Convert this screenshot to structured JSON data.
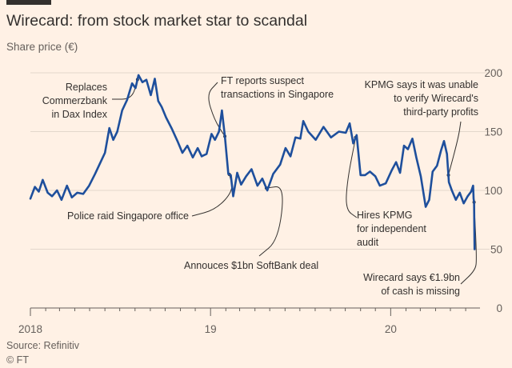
{
  "header": {
    "title": "Wirecard: from stock market star to scandal",
    "subtitle": "Share price (€)"
  },
  "footer": {
    "source": "Source: Refinitiv",
    "credit": "© FT"
  },
  "colors": {
    "background": "#fff1e5",
    "line": "#1e4f9c",
    "grid": "#e3d7cc",
    "text": "#33302e",
    "muted": "#66605c"
  },
  "chart_data": {
    "type": "line",
    "title": "Wirecard: from stock market star to scandal",
    "ylabel": "Share price (€)",
    "ylim": [
      0,
      200
    ],
    "yticks": [
      0,
      50,
      100,
      150,
      200
    ],
    "ytick_labels": [
      "0",
      "50",
      "100",
      "150",
      "200"
    ],
    "xlim": [
      "2018-01-01",
      "2020-06-30"
    ],
    "xticks": [
      "2018-01-01",
      "2019-01-01",
      "2020-01-01"
    ],
    "xtick_labels": [
      "2018",
      "19",
      "20"
    ],
    "grid": true,
    "y_axis_side": "right",
    "series": [
      {
        "values": [
          [
            "2018-01-01",
            93
          ],
          [
            "2018-01-10",
            103
          ],
          [
            "2018-01-18",
            99
          ],
          [
            "2018-01-26",
            109
          ],
          [
            "2018-02-05",
            98
          ],
          [
            "2018-02-14",
            95
          ],
          [
            "2018-02-24",
            100
          ],
          [
            "2018-03-05",
            92
          ],
          [
            "2018-03-16",
            104
          ],
          [
            "2018-03-26",
            94
          ],
          [
            "2018-04-06",
            98
          ],
          [
            "2018-04-18",
            97
          ],
          [
            "2018-04-30",
            104
          ],
          [
            "2018-05-12",
            114
          ],
          [
            "2018-05-22",
            123
          ],
          [
            "2018-06-01",
            132
          ],
          [
            "2018-06-10",
            153
          ],
          [
            "2018-06-18",
            143
          ],
          [
            "2018-06-26",
            150
          ],
          [
            "2018-07-06",
            168
          ],
          [
            "2018-07-16",
            177
          ],
          [
            "2018-07-26",
            191
          ],
          [
            "2018-08-02",
            187
          ],
          [
            "2018-08-08",
            198
          ],
          [
            "2018-08-16",
            192
          ],
          [
            "2018-08-24",
            194
          ],
          [
            "2018-09-02",
            181
          ],
          [
            "2018-09-10",
            195
          ],
          [
            "2018-09-17",
            176
          ],
          [
            "2018-09-24",
            171
          ],
          [
            "2018-10-03",
            162
          ],
          [
            "2018-10-14",
            153
          ],
          [
            "2018-10-26",
            142
          ],
          [
            "2018-11-05",
            132
          ],
          [
            "2018-11-15",
            138
          ],
          [
            "2018-11-26",
            128
          ],
          [
            "2018-12-06",
            136
          ],
          [
            "2018-12-14",
            129
          ],
          [
            "2018-12-24",
            131
          ],
          [
            "2019-01-03",
            148
          ],
          [
            "2019-01-10",
            143
          ],
          [
            "2019-01-18",
            150
          ],
          [
            "2019-01-24",
            168
          ],
          [
            "2019-01-30",
            146
          ],
          [
            "2019-02-06",
            114
          ],
          [
            "2019-02-11",
            113
          ],
          [
            "2019-02-16",
            95
          ],
          [
            "2019-02-24",
            115
          ],
          [
            "2019-03-04",
            105
          ],
          [
            "2019-03-14",
            112
          ],
          [
            "2019-03-25",
            118
          ],
          [
            "2019-04-06",
            104
          ],
          [
            "2019-04-16",
            110
          ],
          [
            "2019-04-26",
            100
          ],
          [
            "2019-05-08",
            114
          ],
          [
            "2019-05-22",
            122
          ],
          [
            "2019-06-02",
            136
          ],
          [
            "2019-06-12",
            129
          ],
          [
            "2019-06-22",
            145
          ],
          [
            "2019-07-02",
            144
          ],
          [
            "2019-07-08",
            159
          ],
          [
            "2019-07-18",
            150
          ],
          [
            "2019-08-02",
            143
          ],
          [
            "2019-08-18",
            154
          ],
          [
            "2019-09-02",
            145
          ],
          [
            "2019-09-18",
            150
          ],
          [
            "2019-10-02",
            149
          ],
          [
            "2019-10-10",
            157
          ],
          [
            "2019-10-17",
            140
          ],
          [
            "2019-10-24",
            147
          ],
          [
            "2019-11-01",
            113
          ],
          [
            "2019-11-10",
            113
          ],
          [
            "2019-11-20",
            116
          ],
          [
            "2019-12-01",
            112
          ],
          [
            "2019-12-10",
            104
          ],
          [
            "2019-12-22",
            106
          ],
          [
            "2020-01-03",
            117
          ],
          [
            "2020-01-12",
            124
          ],
          [
            "2020-01-20",
            115
          ],
          [
            "2020-01-28",
            138
          ],
          [
            "2020-02-05",
            135
          ],
          [
            "2020-02-14",
            144
          ],
          [
            "2020-02-22",
            128
          ],
          [
            "2020-03-02",
            112
          ],
          [
            "2020-03-12",
            86
          ],
          [
            "2020-03-19",
            92
          ],
          [
            "2020-03-26",
            116
          ],
          [
            "2020-04-04",
            121
          ],
          [
            "2020-04-12",
            134
          ],
          [
            "2020-04-18",
            142
          ],
          [
            "2020-04-24",
            131
          ],
          [
            "2020-04-28",
            107
          ],
          [
            "2020-05-04",
            100
          ],
          [
            "2020-05-12",
            92
          ],
          [
            "2020-05-20",
            98
          ],
          [
            "2020-05-28",
            89
          ],
          [
            "2020-06-05",
            95
          ],
          [
            "2020-06-12",
            99
          ],
          [
            "2020-06-16",
            104
          ],
          [
            "2020-06-17",
            93
          ],
          [
            "2020-06-18",
            90
          ],
          [
            "2020-06-19",
            50
          ]
        ]
      }
    ],
    "annotations": [
      {
        "text": [
          "Replaces",
          "Commerzbank",
          "in Dax Index"
        ],
        "date": "2018-08-06"
      },
      {
        "text": [
          "FT reports suspect",
          "transactions in Singapore"
        ],
        "date": "2019-01-30"
      },
      {
        "text": [
          "KPMG says it was unable",
          "to verify Wirecard's",
          "third-party profits"
        ],
        "date": "2020-04-27"
      },
      {
        "text": [
          "Police raid Singapore office"
        ],
        "date": "2019-02-08"
      },
      {
        "text": [
          "Hires KPMG",
          "for independent",
          "audit"
        ],
        "date": "2019-10-22"
      },
      {
        "text": [
          "Annouces $1bn SoftBank deal"
        ],
        "date": "2019-04-24"
      },
      {
        "text": [
          "Wirecard says €1.9bn",
          "of cash is missing"
        ],
        "date": "2020-06-18"
      }
    ]
  }
}
